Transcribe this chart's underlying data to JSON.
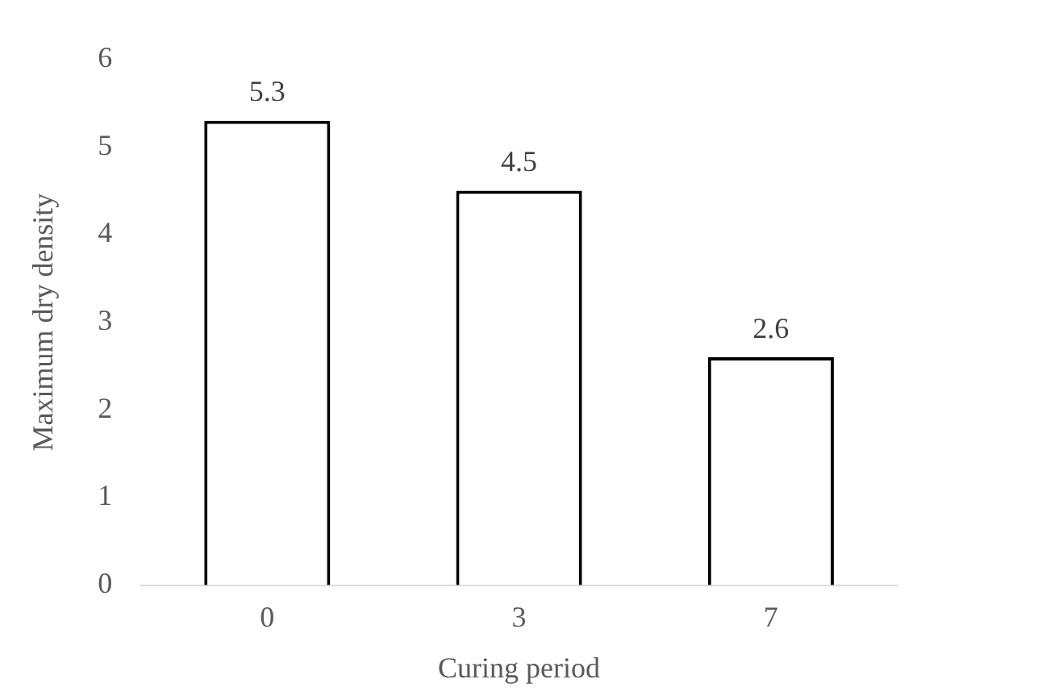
{
  "chart_data": {
    "type": "bar",
    "xlabel": "Curing period",
    "ylabel": "Maximum dry density",
    "categories": [
      "0",
      "3",
      "7"
    ],
    "values": [
      5.3,
      4.5,
      2.6
    ],
    "color": "#ffffff",
    "ylim": [
      0,
      6
    ],
    "yticks": [
      0,
      1,
      2,
      3,
      4,
      5,
      6
    ],
    "grid": false,
    "legend": false,
    "data_labels": true
  }
}
